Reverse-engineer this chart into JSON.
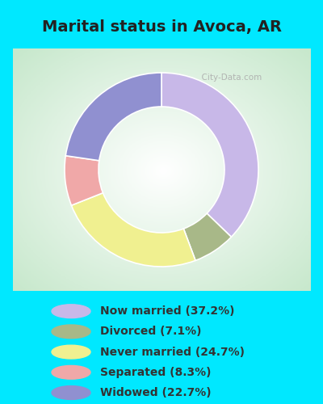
{
  "title": "Marital status in Avoca, AR",
  "slices": [
    {
      "label": "Now married (37.2%)",
      "value": 37.2,
      "color": "#c8b8e8"
    },
    {
      "label": "Divorced (7.1%)",
      "value": 7.1,
      "color": "#a8b888"
    },
    {
      "label": "Never married (24.7%)",
      "value": 24.7,
      "color": "#f0f090"
    },
    {
      "label": "Separated (8.3%)",
      "value": 8.3,
      "color": "#f0a8a8"
    },
    {
      "label": "Widowed (22.7%)",
      "value": 22.7,
      "color": "#9090d0"
    }
  ],
  "bg_outer": "#00e8ff",
  "bg_chart_center": "#ffffff",
  "bg_chart_edge": "#c8e8cc",
  "title_color": "#222222",
  "title_fontsize": 14,
  "donut_width": 0.35,
  "start_angle": 90,
  "legend_fontsize": 10,
  "watermark": "  City-Data.com"
}
